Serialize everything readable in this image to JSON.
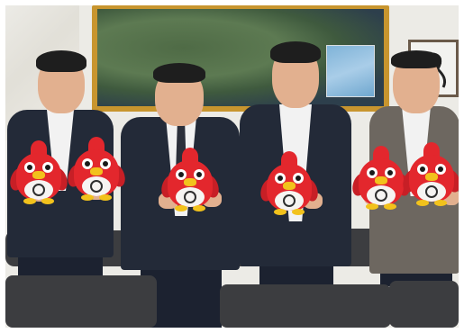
{
  "colors": {
    "wall": "#ecebe6",
    "map_frame": "#c8952e",
    "map_land": "#4f6b46",
    "map_sea": "#2d3f4c",
    "jacket_dark": "#232a38",
    "jacket_grey": "#6d6760",
    "shirt": "#f2f2f2",
    "sofa": "#3c3d40",
    "skin": "#e2b08f",
    "plush_red": "#e3272d",
    "plush_belly": "#f6f4f2",
    "plush_beak": "#f2c21c"
  }
}
